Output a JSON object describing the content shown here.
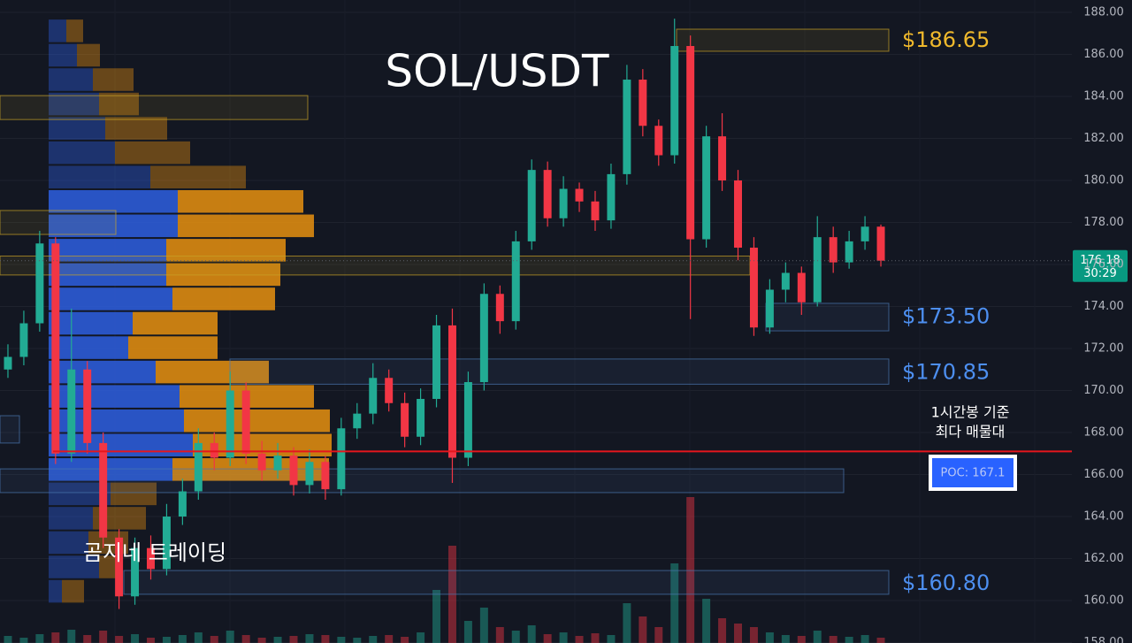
{
  "chart_data": {
    "type": "candlestick",
    "title": "SOL/USDT",
    "watermark": "곰지네 트레이딩",
    "open": [
      171.0,
      171.6,
      173.2,
      177.0,
      167.0,
      171.0,
      167.5,
      163.0,
      160.2,
      162.5,
      161.5,
      164.0,
      165.2,
      167.5,
      166.8,
      170.0,
      167.0,
      166.2,
      166.9,
      165.5,
      166.6,
      165.3,
      168.2,
      168.9,
      170.6,
      169.4,
      167.8,
      169.6,
      173.1,
      166.8,
      170.4,
      174.6,
      173.3,
      177.1,
      180.5,
      178.2,
      179.6,
      179.0,
      178.1,
      180.3,
      184.8,
      182.6,
      181.2,
      186.4,
      177.2,
      182.1,
      180.0,
      176.8,
      173.0,
      174.8,
      175.6,
      174.2,
      177.3,
      176.1,
      177.1,
      177.8
    ],
    "high": [
      172.2,
      173.8,
      177.6,
      177.3,
      173.9,
      171.4,
      168.0,
      163.4,
      163.0,
      163.1,
      164.6,
      165.8,
      168.2,
      168.0,
      170.9,
      170.4,
      167.6,
      167.5,
      167.3,
      167.2,
      166.9,
      168.7,
      169.4,
      171.3,
      171.0,
      169.9,
      170.1,
      173.6,
      173.9,
      170.9,
      175.1,
      175.0,
      177.6,
      181.0,
      180.9,
      180.2,
      179.9,
      179.5,
      180.8,
      185.5,
      185.3,
      182.9,
      187.7,
      186.9,
      182.6,
      183.2,
      180.5,
      177.3,
      175.3,
      176.1,
      175.9,
      178.3,
      177.8,
      177.6,
      178.3,
      177.9
    ],
    "low": [
      170.6,
      171.2,
      172.8,
      166.5,
      166.6,
      167.0,
      162.5,
      159.6,
      159.8,
      161.0,
      161.2,
      163.6,
      164.8,
      166.2,
      166.4,
      166.5,
      165.7,
      165.8,
      165.0,
      165.1,
      164.8,
      165.0,
      167.7,
      168.4,
      169.0,
      167.3,
      167.4,
      169.2,
      165.6,
      166.4,
      170.0,
      172.7,
      172.9,
      176.7,
      177.8,
      177.8,
      178.5,
      177.6,
      177.7,
      179.8,
      182.1,
      180.7,
      180.8,
      173.4,
      176.8,
      179.5,
      176.2,
      172.6,
      172.7,
      174.2,
      173.6,
      174.0,
      175.6,
      175.8,
      176.7,
      175.9
    ],
    "close": [
      171.6,
      173.2,
      177.0,
      167.0,
      171.0,
      167.5,
      163.0,
      160.2,
      162.5,
      161.5,
      164.0,
      165.2,
      167.5,
      166.8,
      170.0,
      167.0,
      166.2,
      166.9,
      165.5,
      166.6,
      165.3,
      168.2,
      168.9,
      170.6,
      169.4,
      167.8,
      169.6,
      173.1,
      166.8,
      170.4,
      174.6,
      173.3,
      177.1,
      180.5,
      178.2,
      179.6,
      179.0,
      178.1,
      180.3,
      184.8,
      182.6,
      181.2,
      186.4,
      177.2,
      182.1,
      180.0,
      176.8,
      173.0,
      174.8,
      175.6,
      174.2,
      177.3,
      176.1,
      177.1,
      177.8,
      176.18
    ],
    "volume": [
      8,
      6,
      10,
      12,
      15,
      9,
      14,
      8,
      10,
      6,
      7,
      9,
      12,
      8,
      14,
      9,
      6,
      7,
      8,
      10,
      9,
      7,
      6,
      8,
      9,
      7,
      12,
      60,
      110,
      25,
      40,
      18,
      14,
      20,
      10,
      12,
      8,
      11,
      9,
      45,
      30,
      18,
      90,
      165,
      50,
      28,
      22,
      18,
      12,
      9,
      8,
      14,
      8,
      7,
      9,
      6
    ],
    "colors": {
      "up": "#22ab94",
      "down": "#f23645"
    },
    "ylim": [
      157.98,
      188.59
    ],
    "yticks": [
      {
        "value": 188,
        "label": "188.00"
      },
      {
        "value": 186,
        "label": "186.00"
      },
      {
        "value": 184,
        "label": "184.00"
      },
      {
        "value": 182,
        "label": "182.00"
      },
      {
        "value": 180,
        "label": "180.00"
      },
      {
        "value": 178,
        "label": "178.00"
      },
      {
        "value": 176,
        "label": "176.00"
      },
      {
        "value": 174,
        "label": "174.00"
      },
      {
        "value": 172,
        "label": "172.00"
      },
      {
        "value": 170,
        "label": "170.00"
      },
      {
        "value": 168,
        "label": "168.00"
      },
      {
        "value": 166,
        "label": "166.00"
      },
      {
        "value": 164,
        "label": "164.00"
      },
      {
        "value": 162,
        "label": "162.00"
      },
      {
        "value": 160,
        "label": "160.00"
      },
      {
        "value": 158,
        "label": "158.00"
      }
    ],
    "grid": true,
    "last_price": {
      "value": 176.18,
      "countdown": "30:29"
    },
    "poc": {
      "value": 167.1,
      "label": "POC: 167.1",
      "note": [
        "1시간봉 기준",
        "최다 매물대"
      ]
    },
    "zones": [
      {
        "high": 187.2,
        "low": 186.15,
        "color": "#c9a227",
        "level": 186.65,
        "label": "$186.65"
      },
      {
        "high": 184.04,
        "low": 182.9,
        "color": "#c9a227"
      },
      {
        "high": 178.57,
        "low": 177.43,
        "color": "#c9a227"
      },
      {
        "high": 176.4,
        "low": 175.5,
        "color": "#c9a227"
      },
      {
        "high": 174.15,
        "low": 172.84,
        "color": "#4a78b0",
        "level": 173.5,
        "label": "$173.50"
      },
      {
        "high": 171.5,
        "low": 170.3,
        "color": "#4a78b0",
        "level": 170.85,
        "label": "$170.85"
      },
      {
        "high": 168.8,
        "low": 167.5,
        "color": "#4a78b0"
      },
      {
        "high": 166.27,
        "low": 165.14,
        "color": "#4a78b0"
      },
      {
        "high": 161.43,
        "low": 160.3,
        "color": "#4a78b0",
        "level": 160.8,
        "label": "$160.80"
      }
    ],
    "volume_profile": {
      "bins": [
        187.7,
        186.54,
        185.38,
        184.22,
        183.06,
        181.9,
        180.74,
        179.58,
        178.42,
        177.26,
        176.1,
        174.94,
        173.78,
        172.62,
        171.46,
        170.3,
        169.14,
        167.98,
        166.82,
        165.66,
        164.5,
        163.34,
        162.18,
        161.02,
        159.86
      ],
      "buy": [
        20,
        32,
        50,
        57,
        64,
        75,
        115,
        146,
        146,
        133,
        133,
        140,
        95,
        90,
        121,
        148,
        153,
        163,
        140,
        70,
        50,
        45,
        57,
        15
      ],
      "sell": [
        19,
        26,
        46,
        45,
        70,
        85,
        108,
        142,
        154,
        135,
        129,
        116,
        96,
        101,
        128,
        152,
        165,
        157,
        177,
        52,
        60,
        45,
        23,
        25
      ],
      "colors": {
        "buy": "#2e5fe0",
        "sell": "#e8900f"
      }
    }
  }
}
